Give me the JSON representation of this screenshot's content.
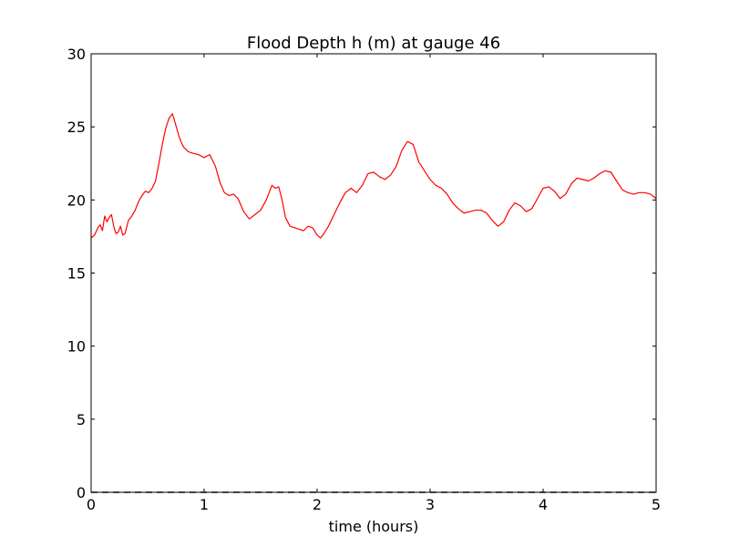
{
  "chart_data": {
    "type": "line",
    "title": "Flood Depth h (m) at gauge 46",
    "xlabel": "time (hours)",
    "ylabel": "",
    "xlim": [
      0,
      5
    ],
    "ylim": [
      0,
      30
    ],
    "xticks": [
      0,
      1,
      2,
      3,
      4,
      5
    ],
    "yticks": [
      0,
      5,
      10,
      15,
      20,
      25,
      30
    ],
    "grid": false,
    "legend": "none",
    "series": [
      {
        "color": "#ff0000",
        "style": "solid",
        "x": [
          0,
          0.03,
          0.06,
          0.08,
          0.1,
          0.12,
          0.14,
          0.16,
          0.18,
          0.2,
          0.22,
          0.24,
          0.26,
          0.28,
          0.3,
          0.33,
          0.36,
          0.39,
          0.42,
          0.45,
          0.48,
          0.51,
          0.54,
          0.57,
          0.6,
          0.63,
          0.66,
          0.69,
          0.72,
          0.75,
          0.78,
          0.8,
          0.82,
          0.86,
          0.9,
          0.95,
          1.0,
          1.05,
          1.1,
          1.14,
          1.18,
          1.22,
          1.26,
          1.3,
          1.35,
          1.4,
          1.45,
          1.5,
          1.55,
          1.6,
          1.63,
          1.66,
          1.69,
          1.72,
          1.76,
          1.8,
          1.84,
          1.88,
          1.92,
          1.96,
          2.0,
          2.03,
          2.06,
          2.1,
          2.15,
          2.2,
          2.25,
          2.3,
          2.35,
          2.4,
          2.45,
          2.5,
          2.55,
          2.6,
          2.65,
          2.7,
          2.75,
          2.8,
          2.85,
          2.9,
          2.95,
          3.0,
          3.05,
          3.1,
          3.15,
          3.2,
          3.25,
          3.3,
          3.35,
          3.4,
          3.45,
          3.5,
          3.55,
          3.6,
          3.65,
          3.7,
          3.75,
          3.8,
          3.85,
          3.9,
          3.95,
          4.0,
          4.05,
          4.1,
          4.15,
          4.2,
          4.25,
          4.3,
          4.35,
          4.4,
          4.45,
          4.5,
          4.55,
          4.6,
          4.65,
          4.7,
          4.75,
          4.8,
          4.85,
          4.9,
          4.95,
          5.0
        ],
        "y": [
          17.4,
          17.6,
          18.1,
          18.3,
          17.9,
          18.9,
          18.5,
          18.8,
          19.0,
          18.2,
          17.7,
          17.8,
          18.2,
          17.6,
          17.7,
          18.6,
          18.9,
          19.3,
          19.9,
          20.3,
          20.6,
          20.5,
          20.8,
          21.3,
          22.5,
          23.8,
          24.9,
          25.6,
          25.9,
          25.1,
          24.3,
          23.9,
          23.6,
          23.3,
          23.2,
          23.1,
          22.9,
          23.1,
          22.3,
          21.2,
          20.5,
          20.3,
          20.4,
          20.1,
          19.2,
          18.7,
          19.0,
          19.3,
          20.0,
          21.0,
          20.8,
          20.9,
          20.0,
          18.8,
          18.2,
          18.1,
          18.0,
          17.9,
          18.2,
          18.1,
          17.6,
          17.4,
          17.7,
          18.2,
          19.0,
          19.8,
          20.5,
          20.8,
          20.5,
          21.0,
          21.8,
          21.9,
          21.6,
          21.4,
          21.7,
          22.3,
          23.4,
          24.0,
          23.8,
          22.6,
          22.0,
          21.4,
          21.0,
          20.8,
          20.4,
          19.8,
          19.4,
          19.1,
          19.2,
          19.3,
          19.3,
          19.1,
          18.6,
          18.2,
          18.5,
          19.3,
          19.8,
          19.6,
          19.2,
          19.4,
          20.1,
          20.8,
          20.9,
          20.6,
          20.1,
          20.4,
          21.1,
          21.5,
          21.4,
          21.3,
          21.5,
          21.8,
          22.0,
          21.9,
          21.3,
          20.7,
          20.5,
          20.4,
          20.5,
          20.5,
          20.4,
          20.1
        ]
      },
      {
        "color": "#000000",
        "style": "dashed",
        "x": [
          0,
          5
        ],
        "y": [
          0,
          0
        ]
      }
    ]
  }
}
